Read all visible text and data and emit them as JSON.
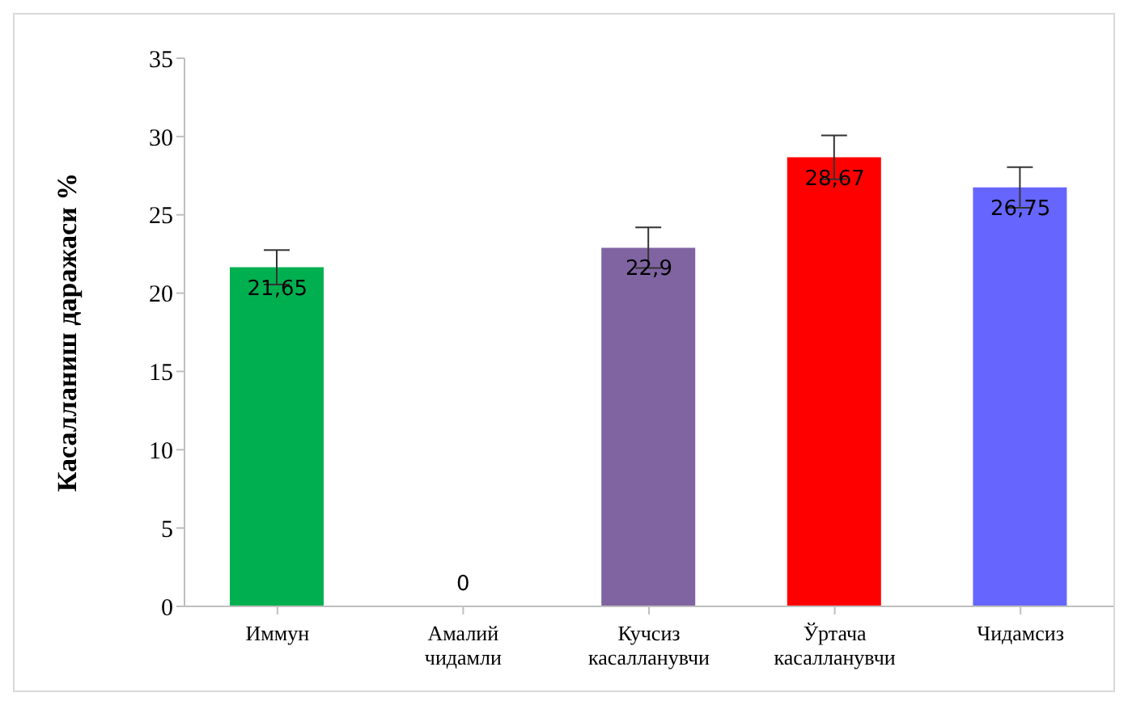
{
  "chart_data": {
    "type": "bar",
    "ylabel": "Касалланиш даражаси %",
    "categories": [
      "Иммун",
      "Амалий чидамли",
      "Кучсиз касалланувчи",
      "Ўртача касалланувчи",
      "Чидамсиз"
    ],
    "values": [
      21.65,
      0,
      22.9,
      28.67,
      26.75
    ],
    "colors": [
      "#00b050",
      "#00b050",
      "#8064a2",
      "#ff0000",
      "#6666ff"
    ],
    "errors": [
      1.1,
      null,
      1.3,
      1.4,
      1.3
    ],
    "value_labels": [
      "21,65",
      "0",
      "22,9",
      "28,67",
      "26,75"
    ],
    "ylim": [
      0,
      35
    ],
    "yticks": [
      0,
      5,
      10,
      15,
      20,
      25,
      30,
      35
    ],
    "grid": false
  }
}
